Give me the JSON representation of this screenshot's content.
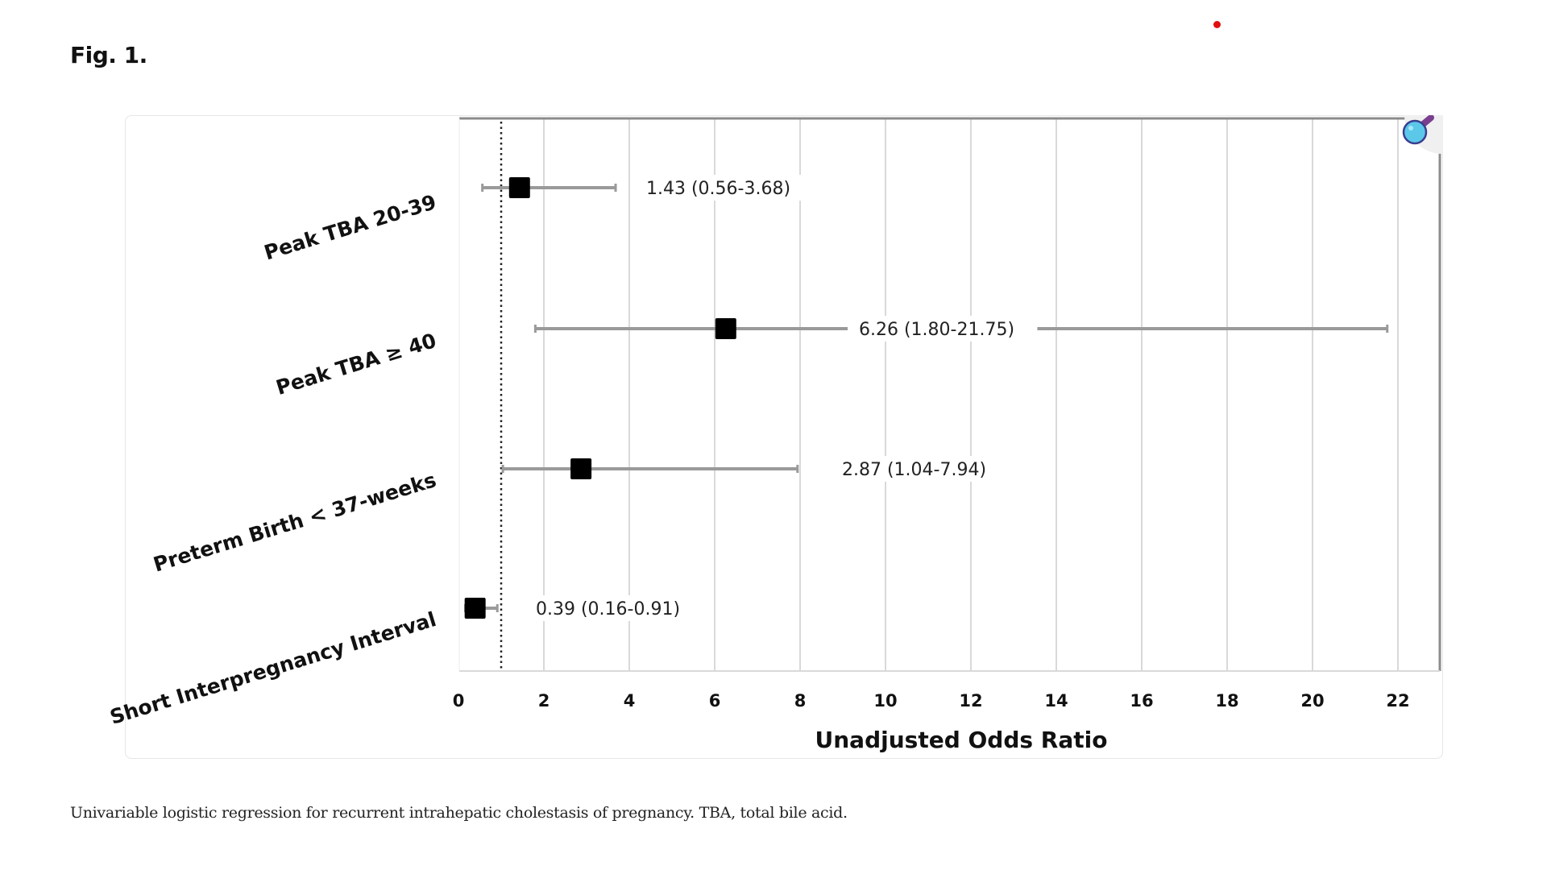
{
  "figure": {
    "title": "Fig. 1.",
    "caption": "Univariable logistic regression for recurrent intrahepatic cholestasis of pregnancy. TBA, total bile acid."
  },
  "icons": {
    "zoom": "magnifier-icon",
    "marker": "red-dot"
  },
  "colors": {
    "point": "#000000",
    "whisker": "#9a9a9a",
    "grid": "#d9d9d9",
    "axis": "#8c8c8c",
    "reference_line": "#222222",
    "magnifier_fill": "#5bc8ea",
    "magnifier_stroke": "#3a3f8f",
    "magnifier_handle": "#7b3f8f",
    "red_dot": "#e01010"
  },
  "chart_data": {
    "type": "forest",
    "title": "",
    "xlabel": "Unadjusted Odds Ratio",
    "ylabel": "",
    "xlim": [
      0,
      23
    ],
    "xticks": [
      0,
      2,
      4,
      6,
      8,
      10,
      12,
      14,
      16,
      18,
      20,
      22
    ],
    "grid": true,
    "reference_line": 1,
    "categories": [
      "Peak TBA 20-39",
      "Peak TBA ≥ 40",
      "Preterm Birth < 37-weeks",
      "Short Interpregnancy Interval"
    ],
    "series": [
      {
        "name": "Odds Ratio",
        "values": [
          1.43,
          6.26,
          2.87,
          0.39
        ],
        "ci_lower": [
          0.56,
          1.8,
          1.04,
          0.16
        ],
        "ci_upper": [
          3.68,
          21.75,
          7.94,
          0.91
        ]
      }
    ],
    "annotations": [
      "1.43 (0.56-3.68)",
      "6.26 (1.80-21.75)",
      "2.87 (1.04-7.94)",
      "0.39 (0.16-0.91)"
    ]
  }
}
